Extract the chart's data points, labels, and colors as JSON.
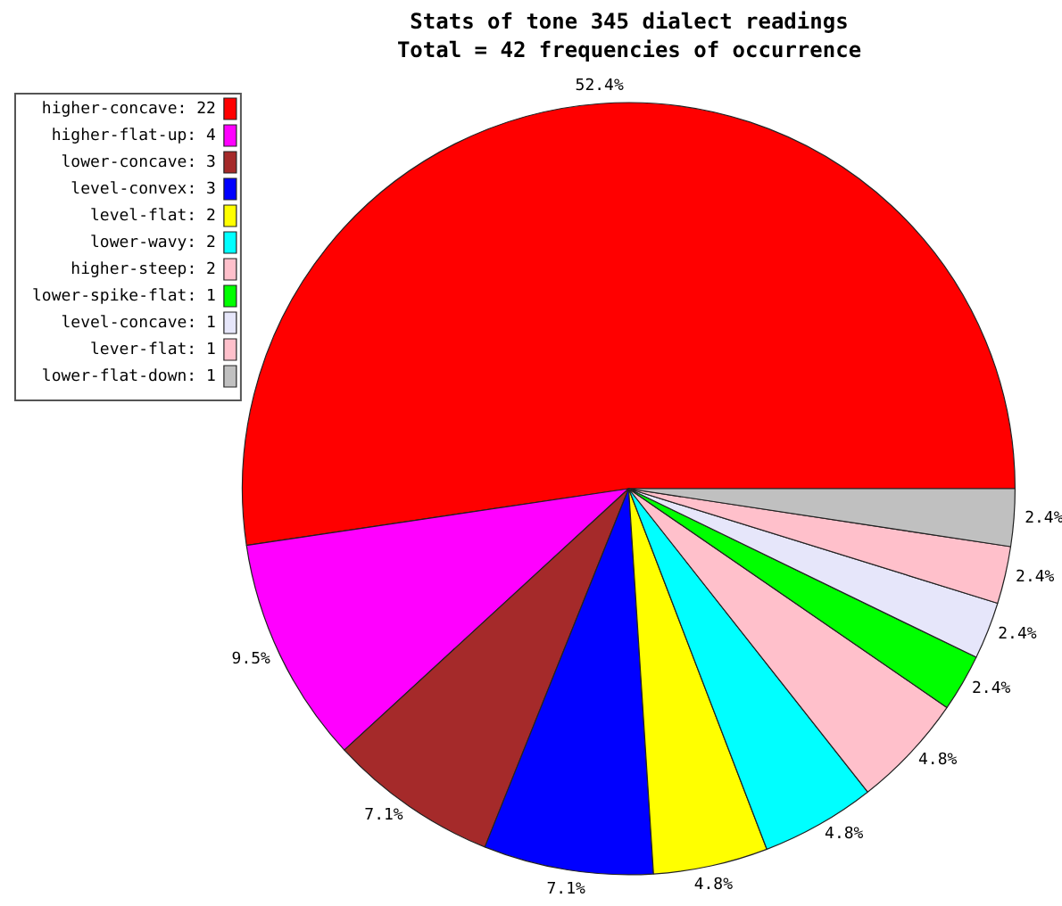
{
  "chart_data": {
    "type": "pie",
    "title": "Stats of tone 345 dialect readings",
    "subtitle": "Total = 42 frequencies of occurrence",
    "categories": [
      "higher-concave: 22",
      "higher-flat-up: 4",
      "lower-concave: 3",
      "level-convex: 3",
      "level-flat: 2",
      "lower-wavy: 2",
      "higher-steep: 2",
      "lower-spike-flat: 1",
      "level-concave: 1",
      "lever-flat: 1",
      "lower-flat-down: 1"
    ],
    "values": [
      52.4,
      9.5,
      7.1,
      7.1,
      4.8,
      4.8,
      4.8,
      2.4,
      2.4,
      2.4,
      2.4
    ],
    "colors": [
      "#ff0000",
      "#ff00ff",
      "#a52a2a",
      "#0000ff",
      "#ffff00",
      "#00ffff",
      "#ffc0cb",
      "#00ff00",
      "#e6e6fa",
      "#ffc0cb",
      "#c0c0c0"
    ],
    "value_labels": [
      "52.4%",
      "9.5%",
      "7.1%",
      "7.1%",
      "4.8%",
      "4.8%",
      "4.8%",
      "2.4%",
      "2.4%",
      "2.4%",
      "2.4%"
    ],
    "legend": "top left"
  }
}
